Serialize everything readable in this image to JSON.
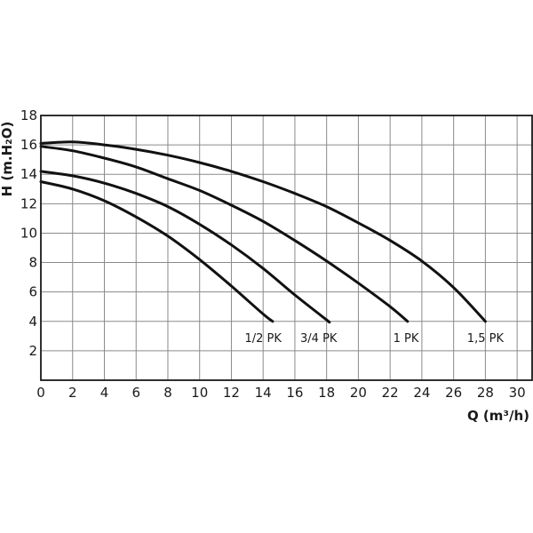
{
  "chart_data": {
    "type": "line",
    "title": "",
    "xlabel": "Q (m³/h)",
    "ylabel": "H (m.H₂O)",
    "xlim": [
      0,
      31
    ],
    "ylim": [
      0,
      18
    ],
    "x_ticks": [
      0,
      2,
      4,
      6,
      8,
      10,
      12,
      14,
      16,
      18,
      20,
      22,
      24,
      26,
      28,
      30
    ],
    "y_ticks": [
      2,
      4,
      6,
      8,
      10,
      12,
      14,
      16,
      18
    ],
    "grid": true,
    "legend": "none",
    "series": [
      {
        "name": "1/2 PK",
        "points": [
          [
            0,
            13.5
          ],
          [
            2,
            13.0
          ],
          [
            4,
            12.2
          ],
          [
            6,
            11.1
          ],
          [
            8,
            9.8
          ],
          [
            10,
            8.2
          ],
          [
            12,
            6.4
          ],
          [
            14,
            4.5
          ],
          [
            14.6,
            4.0
          ]
        ],
        "label_x": 14.0
      },
      {
        "name": "3/4 PK",
        "points": [
          [
            0,
            14.2
          ],
          [
            2,
            13.9
          ],
          [
            4,
            13.4
          ],
          [
            6,
            12.7
          ],
          [
            8,
            11.8
          ],
          [
            10,
            10.6
          ],
          [
            12,
            9.2
          ],
          [
            14,
            7.6
          ],
          [
            16,
            5.8
          ],
          [
            18,
            4.1
          ],
          [
            18.1,
            4.0
          ]
        ],
        "label_x": 17.5
      },
      {
        "name": "1 PK",
        "points": [
          [
            0,
            15.9
          ],
          [
            2,
            15.6
          ],
          [
            4,
            15.1
          ],
          [
            6,
            14.5
          ],
          [
            8,
            13.7
          ],
          [
            10,
            12.9
          ],
          [
            12,
            11.9
          ],
          [
            14,
            10.8
          ],
          [
            16,
            9.5
          ],
          [
            18,
            8.1
          ],
          [
            20,
            6.6
          ],
          [
            22,
            5.0
          ],
          [
            23.1,
            4.0
          ]
        ],
        "label_x": 23.0
      },
      {
        "name": "1,5 PK",
        "points": [
          [
            0,
            16.1
          ],
          [
            2,
            16.2
          ],
          [
            4,
            16.0
          ],
          [
            6,
            15.7
          ],
          [
            8,
            15.3
          ],
          [
            10,
            14.8
          ],
          [
            12,
            14.2
          ],
          [
            14,
            13.5
          ],
          [
            16,
            12.7
          ],
          [
            18,
            11.8
          ],
          [
            20,
            10.7
          ],
          [
            22,
            9.5
          ],
          [
            24,
            8.1
          ],
          [
            26,
            6.3
          ],
          [
            28,
            4.0
          ]
        ],
        "label_x": 28.0
      }
    ]
  }
}
